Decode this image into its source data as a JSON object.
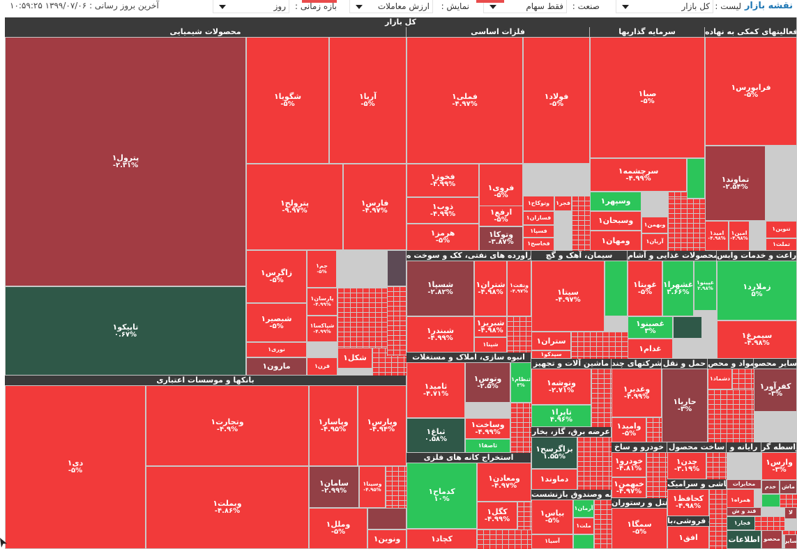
{
  "colors": {
    "red": "#f23a3a",
    "darkred": "#a23c43",
    "maroon": "#924046",
    "green": "#2cc55a",
    "darkgreen": "#2f5848",
    "gray": "#5d4a55",
    "section": "#3a3a3a"
  },
  "toolbar": {
    "title": "نقشه بازار",
    "list_label": "لیست :",
    "list_value": "کل بازار",
    "industry_label": "صنعت :",
    "industry_value": "فقط سهام",
    "display_label": "نمایش :",
    "display_value": "ارزش معاملات",
    "period_label": "بازه زمانی :",
    "period_value": "روز",
    "last_update": "آخرین بروز رسانی : ۱۳۹۹/۰۷/۰۶ ۱۰:۵۹:۲۵"
  },
  "market_title": "کل بازار",
  "sections": [
    {
      "id": "chem",
      "label": "محصولات شیمیایی"
    },
    {
      "id": "metal",
      "label": "فلزات اساسی"
    },
    {
      "id": "invest",
      "label": "سرمایه گذاریها"
    },
    {
      "id": "aux",
      "label": "فعالیتهای کمکی به نهاده"
    },
    {
      "id": "oil",
      "label": "فراورده های نفتی، کک و سوخت ه"
    },
    {
      "id": "cement",
      "label": "سیمان، آهک و گچ"
    },
    {
      "id": "food",
      "label": "محصولات غذایی و آشام"
    },
    {
      "id": "agri",
      "label": "زراعت و خدمات وابس"
    },
    {
      "id": "bank",
      "label": "بانکها و موسسات اعتباری"
    },
    {
      "id": "build",
      "label": "انبوه سازی، املاک و مستغلات"
    },
    {
      "id": "mach",
      "label": "ماشین آلات و تجهیز"
    },
    {
      "id": "multi",
      "label": "شرکتهای چند"
    },
    {
      "id": "transport",
      "label": "حمل و نقل"
    },
    {
      "id": "medical",
      "label": "مواد و محص"
    },
    {
      "id": "other",
      "label": "سایر محصو"
    },
    {
      "id": "elec",
      "label": "عرضه برق، گاز، بخار"
    },
    {
      "id": "mining",
      "label": "استخراج کانه های فلزی"
    },
    {
      "id": "auto",
      "label": "خودرو و ساخ"
    },
    {
      "id": "product",
      "label": "ساخت محصول"
    },
    {
      "id": "radio",
      "label": "رایانه و"
    },
    {
      "id": "broker",
      "label": "واسطه گر"
    },
    {
      "id": "tile",
      "label": "کاشی و سرامیک"
    },
    {
      "id": "insure",
      "label": "بیمه وصندوق بازنشست"
    },
    {
      "id": "hotel",
      "label": "هتل و رستوران"
    },
    {
      "id": "retail",
      "label": "خرده فروشی،با"
    }
  ],
  "tiles": [
    {
      "name": "پترول۱",
      "change": "-۲.۳۱%"
    },
    {
      "name": "تاپیکو۱",
      "change": "۰.۶۷%"
    },
    {
      "name": "شگویا۱",
      "change": "-۵%"
    },
    {
      "name": "آریا۱",
      "change": "-۵%"
    },
    {
      "name": "پترولح۱",
      "change": "-۹.۹۷%"
    },
    {
      "name": "فارس۱",
      "change": "-۴.۹۷%"
    },
    {
      "name": "زاگرس۱",
      "change": "-۵%"
    },
    {
      "name": "جم۱",
      "change": "-۵%"
    },
    {
      "name": "پارسان۱",
      "change": "-۴.۹۹%"
    },
    {
      "name": "شبصیر۱",
      "change": "-۵%"
    },
    {
      "name": "شپاکسا۱",
      "change": "-۴.۹۹%"
    },
    {
      "name": "نوری۱",
      "change": ""
    },
    {
      "name": "مارون۱",
      "change": ""
    },
    {
      "name": "قرن۱",
      "change": ""
    },
    {
      "name": "شکل۱",
      "change": ""
    },
    {
      "name": "فملی۱",
      "change": "-۴.۹۷%"
    },
    {
      "name": "فولاد۱",
      "change": "-۵%"
    },
    {
      "name": "فخوز۱",
      "change": "-۴.۹۹%"
    },
    {
      "name": "فروی۱",
      "change": "-۵%"
    },
    {
      "name": "ذوب۱",
      "change": "-۴.۹۹%"
    },
    {
      "name": "ارفع۱",
      "change": "-۵%"
    },
    {
      "name": "هرمز۱",
      "change": "-۵%"
    },
    {
      "name": "وتوکا۱",
      "change": "-۳.۸۷%"
    },
    {
      "name": "وتوکاح۱",
      "change": ""
    },
    {
      "name": "فجر۱",
      "change": ""
    },
    {
      "name": "فسازان۱",
      "change": ""
    },
    {
      "name": "فسپا۱",
      "change": ""
    },
    {
      "name": "فخاسح۱",
      "change": ""
    },
    {
      "name": "صبا۱",
      "change": "-۵%"
    },
    {
      "name": "سرچشمه۱",
      "change": "-۴.۹۹%"
    },
    {
      "name": "وسپهر۱",
      "change": ""
    },
    {
      "name": "وسبحان۱",
      "change": ""
    },
    {
      "name": "وبهمن۱",
      "change": ""
    },
    {
      "name": "ومهان۱",
      "change": ""
    },
    {
      "name": "آریان۱",
      "change": ""
    },
    {
      "name": "فرابورس۱",
      "change": "-۵%"
    },
    {
      "name": "تماوند۱",
      "change": "-۲.۵۴%"
    },
    {
      "name": "اميد۱",
      "change": "-۴.۹۸%"
    },
    {
      "name": "امین۱",
      "change": "-۴.۹۸%"
    },
    {
      "name": "تنوین۱",
      "change": ""
    },
    {
      "name": "تملت۱",
      "change": ""
    },
    {
      "name": "شسپا۱",
      "change": "-۲.۸۲%"
    },
    {
      "name": "شتران۱",
      "change": "-۴.۹۸%"
    },
    {
      "name": "ونفت۱",
      "change": "-۴.۹۷%"
    },
    {
      "name": "شبندر۱",
      "change": "-۴.۹۹%"
    },
    {
      "name": "شبریز۱",
      "change": "-۴.۹۸%"
    },
    {
      "name": "شپنا۱",
      "change": ""
    },
    {
      "name": "ستران۱",
      "change": ""
    },
    {
      "name": "سپدکو۱",
      "change": ""
    },
    {
      "name": "سیتا۱",
      "change": "-۴.۹۷%"
    },
    {
      "name": "غویتا۱",
      "change": "-۵%"
    },
    {
      "name": "غشهرا۱",
      "change": "۳.۶۶%"
    },
    {
      "name": "غپینو۱",
      "change": "۲.۹۸%"
    },
    {
      "name": "غصینو۱",
      "change": "۳%"
    },
    {
      "name": "غدام۱",
      "change": ""
    },
    {
      "name": "زملارد۱",
      "change": "۵%"
    },
    {
      "name": "سیمرغ۱",
      "change": "-۴.۹۸%"
    },
    {
      "name": "دی۱",
      "change": "-۵%"
    },
    {
      "name": "وتجارت۱",
      "change": "-۴.۹%"
    },
    {
      "name": "وپاسار۱",
      "change": "-۴.۹۵%"
    },
    {
      "name": "وپارس۱",
      "change": "-۴.۹۴%"
    },
    {
      "name": "وبملت۱",
      "change": "-۴.۸۶%"
    },
    {
      "name": "سامان۱",
      "change": "-۲.۹۹%"
    },
    {
      "name": "وسینا۱",
      "change": "-۴.۹۵%"
    },
    {
      "name": "وملل۱",
      "change": "-۵%"
    },
    {
      "name": "ونوین۱",
      "change": ""
    },
    {
      "name": "ثامید۱",
      "change": "-۴.۷۱%"
    },
    {
      "name": "وتوس۱",
      "change": "-۲.۵%"
    },
    {
      "name": "ثنظام۱",
      "change": "۳%"
    },
    {
      "name": "وساخت۱",
      "change": "-۴.۹۹%"
    },
    {
      "name": "ثباغ۱",
      "change": "۰.۵۸%"
    },
    {
      "name": "ثاصفا۱",
      "change": ""
    },
    {
      "name": "وتوشه۱",
      "change": "-۲.۷۱%"
    },
    {
      "name": "تاپرا۱",
      "change": "۴.۹۶%"
    },
    {
      "name": "وغدیر۱",
      "change": "-۴.۹۹%"
    },
    {
      "name": "وامید۱",
      "change": "-۵%"
    },
    {
      "name": "حاریا۱",
      "change": "-۳%"
    },
    {
      "name": "دشماد۱",
      "change": ""
    },
    {
      "name": "کفرآور۱",
      "change": "-۳%"
    },
    {
      "name": "بزاگرسح۱",
      "change": "۱.۵۵%"
    },
    {
      "name": "دماوند۱",
      "change": ""
    },
    {
      "name": "کدماح۱",
      "change": "۱۰%"
    },
    {
      "name": "ومعادن۱",
      "change": "-۴.۹۷%"
    },
    {
      "name": "کگل۱",
      "change": "-۴.۹۹%"
    },
    {
      "name": "کچاد۱",
      "change": ""
    },
    {
      "name": "خودرو۱",
      "change": "-۴.۸۱%"
    },
    {
      "name": "خبهمن۱",
      "change": "-۴.۹۷%"
    },
    {
      "name": "چدن۱",
      "change": "-۳.۱۹%"
    },
    {
      "name": "وارس۱",
      "change": "-۳%"
    },
    {
      "name": "کحافظ۱",
      "change": "-۴.۹۸%"
    },
    {
      "name": "همراه۱",
      "change": ""
    },
    {
      "name": "مخابرات",
      "change": ""
    },
    {
      "name": "بیاس۱",
      "change": "-۵%"
    },
    {
      "name": "آرمان۱",
      "change": ""
    },
    {
      "name": "ملت۱",
      "change": ""
    },
    {
      "name": "آسیا۱",
      "change": ""
    },
    {
      "name": "سمگا۱",
      "change": "-۵%"
    },
    {
      "name": "افق۱",
      "change": ""
    },
    {
      "name": "فجار۱",
      "change": ""
    },
    {
      "name": "اطلاعات",
      "change": ""
    },
    {
      "name": "محصو",
      "change": ""
    },
    {
      "name": "خدم",
      "change": ""
    },
    {
      "name": "ماش",
      "change": ""
    },
    {
      "name": "قند و ش",
      "change": ""
    },
    {
      "name": "لا",
      "change": ""
    },
    {
      "name": "سایر",
      "change": ""
    }
  ]
}
